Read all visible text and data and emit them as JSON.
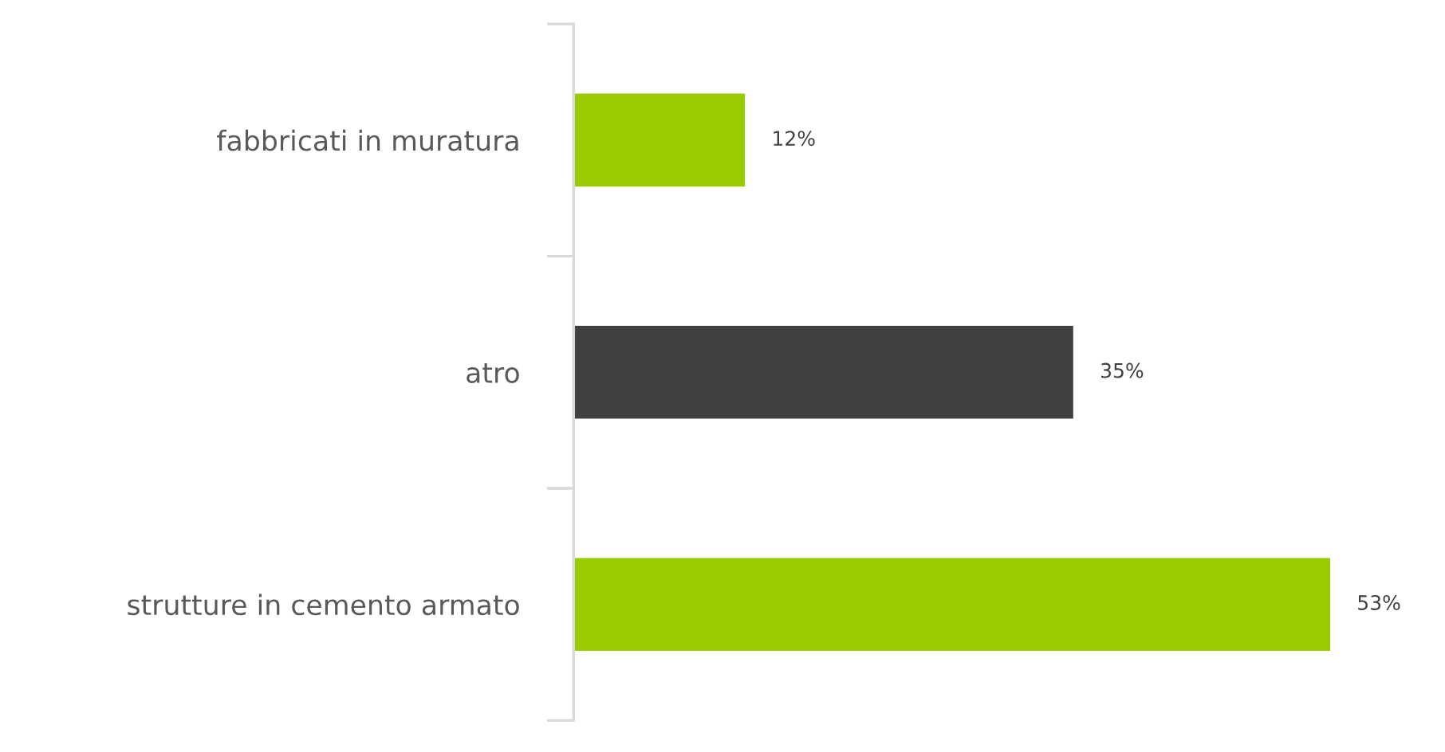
{
  "chart_data": {
    "type": "bar",
    "orientation": "horizontal",
    "categories": [
      "fabbricati in muratura",
      "atro",
      "strutture in cemento armato"
    ],
    "values": [
      12,
      35,
      53
    ],
    "colors": [
      "#99cc00",
      "#404040",
      "#99cc00"
    ],
    "value_labels": [
      "12%",
      "35%",
      "53%"
    ],
    "tick_labels": "y"
  }
}
